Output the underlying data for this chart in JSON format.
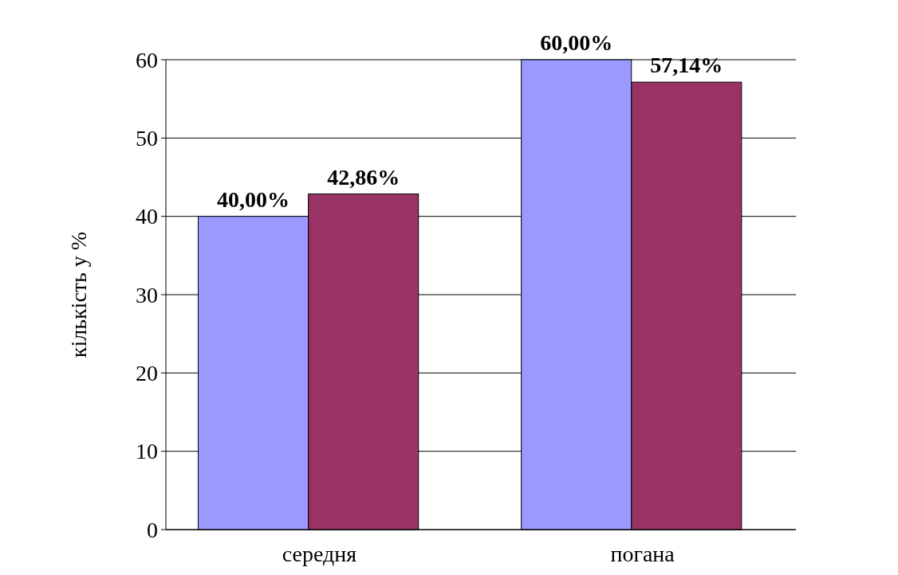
{
  "chart_data": {
    "type": "bar",
    "ylabel": "кількість у %",
    "categories": [
      "середня",
      "погана"
    ],
    "series": [
      {
        "color": "#9999ff",
        "values": [
          40,
          60
        ],
        "value_labels": [
          "40,00%",
          "60,00%"
        ]
      },
      {
        "color": "#993366",
        "values": [
          42.86,
          57.14
        ],
        "value_labels": [
          "42,86%",
          "57,14%"
        ]
      }
    ],
    "ylim": [
      0,
      60
    ],
    "yticks": [
      0,
      10,
      20,
      30,
      40,
      50,
      60
    ],
    "grid": "y"
  }
}
